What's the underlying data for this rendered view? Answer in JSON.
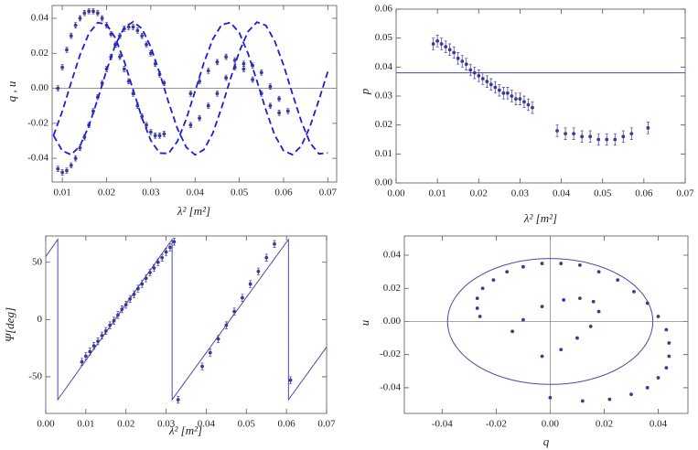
{
  "chart_data": [
    {
      "type": "scatter",
      "xlabel": "λ² [m²]",
      "ylabel": "q , u",
      "xlim": [
        0.0077,
        0.072
      ],
      "ylim": [
        -0.0535,
        0.0473
      ],
      "xticks": [
        0.01,
        0.02,
        0.03,
        0.04,
        0.05,
        0.06,
        0.07
      ],
      "yticks": [
        -0.04,
        -0.02,
        {
          "value": 0,
          "label": "0.00"
        },
        0.02,
        0.04
      ],
      "zero_lines": true,
      "x": [
        0.009,
        0.01,
        0.011,
        0.012,
        0.013,
        0.014,
        0.015,
        0.016,
        0.017,
        0.018,
        0.019,
        0.02,
        0.021,
        0.022,
        0.023,
        0.024,
        0.025,
        0.026,
        0.027,
        0.028,
        0.029,
        0.03,
        0.031,
        0.032,
        0.033,
        0.039,
        0.041,
        0.043,
        0.045,
        0.047,
        0.049,
        0.051,
        0.053,
        0.055,
        0.057,
        0.059,
        0.061
      ],
      "series": [
        {
          "kind": "points",
          "color": "#3a3a96",
          "error": 0.0015,
          "values": [
            0,
            0.012,
            0.022,
            0.03,
            0.036,
            0.04,
            0.043,
            0.044,
            0.044,
            0.043,
            0.04,
            0.036,
            0.031,
            0.025,
            0.018,
            0.011,
            0.004,
            -0.003,
            -0.01,
            -0.016,
            -0.021,
            -0.025,
            -0.027,
            -0.027,
            -0.026,
            -0.003,
            0.004,
            0.01,
            0.015,
            0.018,
            0.016,
            0.011,
            0.005,
            -0.003,
            -0.01,
            -0.014,
            null
          ]
        },
        {
          "kind": "points",
          "color": "#3a3a96",
          "error": 0.0015,
          "values": [
            -0.046,
            -0.048,
            -0.047,
            -0.044,
            -0.04,
            -0.034,
            -0.028,
            -0.021,
            -0.013,
            -0.005,
            0.003,
            0.011,
            0.018,
            0.025,
            0.03,
            0.034,
            0.035,
            0.035,
            0.033,
            0.03,
            0.025,
            0.02,
            0.014,
            0.008,
            0.003,
            -0.021,
            -0.017,
            -0.01,
            -0.003,
            0.006,
            0.012,
            0.014,
            0.013,
            0.009,
            0.001,
            -0.006,
            -0.013
          ]
        },
        {
          "kind": "line",
          "dashed": true,
          "color": "#1e1ed8",
          "x": [
            0.008,
            0.01,
            0.012,
            0.014,
            0.016,
            0.018,
            0.02,
            0.022,
            0.024,
            0.026,
            0.028,
            0.03,
            0.032,
            0.034,
            0.036,
            0.038,
            0.04,
            0.042,
            0.044,
            0.046,
            0.048,
            0.05,
            0.052,
            0.054,
            0.056,
            0.058,
            0.06,
            0.062,
            0.064,
            0.066,
            0.068,
            0.07
          ],
          "values": [
            -0.0269,
            -0.0357,
            -0.0379,
            -0.0329,
            -0.0215,
            -0.0062,
            0.0103,
            0.0249,
            0.0347,
            0.038,
            0.0341,
            0.0236,
            0.0087,
            -0.0079,
            -0.0229,
            -0.0336,
            -0.038,
            -0.035,
            -0.0257,
            -0.0111,
            0.0054,
            0.021,
            0.0325,
            0.0378,
            0.0359,
            0.027,
            0.0133,
            -0.0031,
            -0.0188,
            -0.0312,
            -0.0374,
            -0.0369
          ]
        },
        {
          "kind": "line",
          "dashed": true,
          "color": "#1e1ed8",
          "x": [
            0.008,
            0.01,
            0.012,
            0.014,
            0.016,
            0.018,
            0.02,
            0.022,
            0.024,
            0.026,
            0.028,
            0.03,
            0.032,
            0.034,
            0.036,
            0.038,
            0.04,
            0.042,
            0.044,
            0.046,
            0.048,
            0.05,
            0.052,
            0.054,
            0.056,
            0.058,
            0.06,
            0.062,
            0.064,
            0.066,
            0.068,
            0.07
          ],
          "values": [
            -0.027,
            -0.0131,
            0.0033,
            0.0191,
            0.0313,
            0.0375,
            0.0366,
            0.0287,
            0.0154,
            -0.0008,
            -0.0169,
            -0.0298,
            -0.037,
            -0.0372,
            -0.0303,
            -0.0176,
            -0.0017,
            0.0146,
            0.028,
            0.0363,
            0.0376,
            0.0317,
            0.0197,
            0.0041,
            -0.0123,
            -0.0267,
            -0.0356,
            -0.0379,
            -0.033,
            -0.0217,
            -0.0066,
            0.0095
          ]
        }
      ]
    },
    {
      "type": "scatter",
      "xlabel": "λ² [m²]",
      "ylabel": "p",
      "xlim": [
        0,
        0.07
      ],
      "ylim": [
        0,
        0.06
      ],
      "xticks": [
        {
          "value": 0,
          "label": "0.00"
        },
        0.01,
        0.02,
        0.03,
        0.04,
        0.05,
        0.06,
        0.07
      ],
      "yticks": [
        {
          "value": 0,
          "label": "0.00"
        },
        0.01,
        0.02,
        0.03,
        0.04,
        0.05,
        0.06
      ],
      "hline": 0.038,
      "hline_color": "#4a4aa8",
      "x": [
        0.009,
        0.01,
        0.011,
        0.012,
        0.013,
        0.014,
        0.015,
        0.016,
        0.017,
        0.018,
        0.019,
        0.02,
        0.021,
        0.022,
        0.023,
        0.024,
        0.025,
        0.026,
        0.027,
        0.028,
        0.029,
        0.03,
        0.031,
        0.032,
        0.033,
        0.039,
        0.041,
        0.043,
        0.045,
        0.047,
        0.049,
        0.051,
        0.053,
        0.055,
        0.057,
        0.059,
        0.061
      ],
      "series": [
        {
          "kind": "points",
          "color": "#3a3a96",
          "error": 0.002,
          "values": [
            0.048,
            0.049,
            0.048,
            0.047,
            0.046,
            0.045,
            0.043,
            0.042,
            0.041,
            0.039,
            0.038,
            0.037,
            0.036,
            0.035,
            0.034,
            0.033,
            0.032,
            0.031,
            0.031,
            0.03,
            0.029,
            0.029,
            0.028,
            0.027,
            0.026,
            0.018,
            0.017,
            0.017,
            0.016,
            0.016,
            0.015,
            0.015,
            0.015,
            0.016,
            0.017,
            null,
            0.019
          ]
        }
      ]
    },
    {
      "type": "scatter",
      "xlabel": "λ² [m²]",
      "ylabel": "Ψ[deg]",
      "xlim": [
        0,
        0.07
      ],
      "ylim": [
        -82,
        73
      ],
      "xticks": [
        {
          "value": 0,
          "label": "0.00"
        },
        0.01,
        0.02,
        0.03,
        0.04,
        0.05,
        0.06,
        0.07
      ],
      "yticks": [
        -50,
        0,
        50
      ],
      "x": [
        0.009,
        0.01,
        0.011,
        0.012,
        0.013,
        0.014,
        0.015,
        0.016,
        0.017,
        0.018,
        0.019,
        0.02,
        0.021,
        0.022,
        0.023,
        0.024,
        0.025,
        0.026,
        0.027,
        0.028,
        0.029,
        0.03,
        0.031,
        0.032,
        0.033,
        0.039,
        0.041,
        0.043,
        0.045,
        0.047,
        0.049,
        0.051,
        0.053,
        0.055,
        0.057,
        0.059,
        0.061
      ],
      "series": [
        {
          "kind": "line",
          "color": "#4a4aa8",
          "x": [
            0,
            0.003,
            0.003,
            0.0315,
            0.0315,
            0.0605,
            0.0605,
            0.07
          ],
          "values": [
            55,
            70,
            -70,
            70,
            -70,
            70,
            -70,
            -24
          ]
        },
        {
          "kind": "points",
          "color": "#3a3a96",
          "error": 3,
          "values": [
            -37,
            -32,
            -28,
            -23,
            -19,
            -14,
            -10,
            -5,
            -1,
            4,
            9,
            13,
            18,
            22,
            27,
            31,
            36,
            41,
            45,
            50,
            54,
            59,
            63,
            68,
            -70,
            -41,
            -29,
            -17,
            -5,
            7,
            19,
            31,
            42,
            54,
            66,
            null,
            -53
          ]
        }
      ]
    },
    {
      "type": "scatter",
      "xlabel": "q",
      "ylabel": "u",
      "xlim": [
        -0.054,
        0.051
      ],
      "ylim": [
        -0.0555,
        0.0516
      ],
      "xticks": [
        -0.04,
        -0.02,
        {
          "value": 0,
          "label": "0.00"
        },
        0.02,
        0.04
      ],
      "yticks": [
        -0.04,
        -0.02,
        {
          "value": 0,
          "label": "0.00"
        },
        0.02,
        0.04
      ],
      "zero_lines": true,
      "circle_radius": 0.038,
      "circle_color": "#4a4aa8",
      "series": [
        {
          "kind": "points",
          "color": "#3a3a96",
          "x": [
            0,
            0.012,
            0.022,
            0.03,
            0.036,
            0.04,
            0.043,
            0.044,
            0.044,
            0.043,
            0.04,
            0.036,
            0.031,
            0.025,
            0.018,
            0.011,
            0.004,
            -0.003,
            -0.01,
            -0.016,
            -0.021,
            -0.025,
            -0.027,
            -0.027,
            -0.026,
            -0.003,
            0.004,
            0.01,
            0.015,
            0.018,
            0.016,
            0.011,
            0.005,
            -0.003,
            -0.01,
            -0.014,
            null
          ],
          "values": [
            -0.046,
            -0.048,
            -0.047,
            -0.044,
            -0.04,
            -0.034,
            -0.028,
            -0.021,
            -0.013,
            -0.005,
            0.003,
            0.011,
            0.018,
            0.025,
            0.03,
            0.034,
            0.035,
            0.035,
            0.033,
            0.03,
            0.025,
            0.02,
            0.014,
            0.008,
            0.003,
            -0.021,
            -0.017,
            -0.01,
            -0.003,
            0.006,
            0.012,
            0.014,
            0.013,
            0.009,
            0.001,
            -0.006,
            -0.013
          ]
        }
      ]
    }
  ]
}
